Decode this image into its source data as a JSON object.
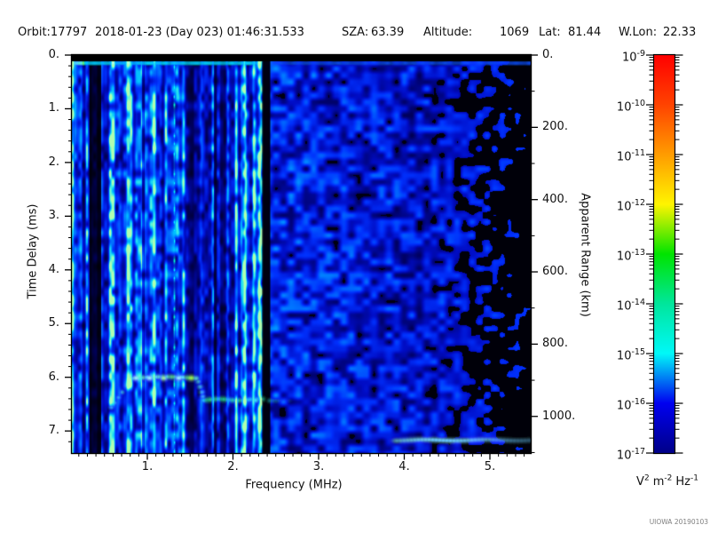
{
  "header": {
    "fields": [
      {
        "name": "orbit",
        "text": "Orbit:17797"
      },
      {
        "name": "datetime",
        "text": "2018-01-23 (Day 023) 01:46:31.533"
      },
      {
        "name": "sza-label",
        "text": "SZA:"
      },
      {
        "name": "sza-value",
        "text": "63.39"
      },
      {
        "name": "altitude-label",
        "text": "Altitude:"
      },
      {
        "name": "altitude-value",
        "text": "1069"
      },
      {
        "name": "lat-label",
        "text": "Lat:"
      },
      {
        "name": "lat-value",
        "text": "81.44"
      },
      {
        "name": "wlon-label",
        "text": "W.Lon:"
      },
      {
        "name": "wlon-value",
        "text": "22.33"
      }
    ]
  },
  "axes": {
    "x_title": "Frequency (MHz)",
    "y_left_title": "Time Delay (ms)",
    "y_right_title": "Apparent Range (km)",
    "x_tick_labels": [
      "1.",
      "2.",
      "3.",
      "4.",
      "5."
    ],
    "y_left_tick_labels": [
      "0.",
      "1.",
      "2.",
      "3.",
      "4.",
      "5.",
      "6.",
      "7."
    ],
    "y_right_tick_labels": [
      "0.",
      "200.",
      "400.",
      "600.",
      "800.",
      "1000."
    ]
  },
  "colorbar": {
    "base": "10",
    "tick_exponents": [
      "-9",
      "-10",
      "-11",
      "-12",
      "-13",
      "-14",
      "-15",
      "-16",
      "-17"
    ],
    "units_parts": [
      [
        "V",
        "2"
      ],
      [
        "m",
        "-2"
      ],
      [
        "Hz",
        "-1"
      ]
    ],
    "gradient": [
      "#ff0000",
      "#ff4300",
      "#ff9c00",
      "#fff400",
      "#00e400",
      "#00e69c",
      "#00f8f8",
      "#0000f0",
      "#000088"
    ]
  },
  "watermark": "UIOWA 20190103",
  "chart_data": {
    "type": "heatmap",
    "subtype": "radar-sounder-ionogram-spectrogram",
    "xlabel": "Frequency (MHz)",
    "ylabel": "Time Delay (ms)",
    "y2label": "Apparent Range (km)",
    "xlim": [
      0.12,
      5.45
    ],
    "ylim_ms": [
      0,
      7.4
    ],
    "y2lim_km": [
      0,
      1100
    ],
    "x_ticks": [
      1,
      2,
      3,
      4,
      5
    ],
    "x_minor_step": 0.1,
    "y_ticks_ms": [
      0,
      1,
      2,
      3,
      4,
      5,
      6,
      7
    ],
    "y_minor_step_ms": 0.2,
    "y2_ticks_km": [
      0,
      200,
      400,
      600,
      800,
      1000
    ],
    "y2_minor_step_km": 100,
    "grid": false,
    "colorbar": {
      "scale": "log10",
      "range": [
        "1e-17",
        "1e-9"
      ],
      "units": "V^2 m^-2 Hz^-1",
      "colormap": "rainbow"
    },
    "features": {
      "top_black_band_ms": [
        0.0,
        0.12
      ],
      "top_bright_line_ms": [
        0.12,
        0.19
      ],
      "echo_trace": {
        "leading_edge_f_ms": [
          [
            0.62,
            6.55
          ],
          [
            0.68,
            6.42
          ],
          [
            0.74,
            6.27
          ],
          [
            0.8,
            6.1
          ]
        ],
        "plateau": {
          "f_MHz": [
            0.82,
            1.58
          ],
          "delay_ms": 6.0
        },
        "cusp_f_ms": [
          [
            1.6,
            6.05
          ],
          [
            1.66,
            6.35
          ]
        ],
        "second_branch": {
          "f_MHz": [
            1.68,
            2.5
          ],
          "delay_ms": 6.42
        },
        "faint_continuation": {
          "f_MHz": [
            2.46,
            2.72
          ],
          "delay_ms": 6.45
        }
      },
      "bright_vertical_line_MHz": 1.31,
      "dark_vertical_bands_MHz": [
        [
          0.32,
          0.46
        ],
        [
          2.36,
          2.43
        ]
      ],
      "bottom_streak": {
        "f_MHz": [
          3.92,
          5.45
        ],
        "delay_ms": 7.16
      },
      "background_regions": [
        {
          "f_MHz": [
            0.12,
            2.36
          ],
          "desc": "bright streaky blue-cyan noise"
        },
        {
          "f_MHz": [
            2.43,
            4.25
          ],
          "desc": "mottled medium blue blobs"
        },
        {
          "f_MHz": [
            4.25,
            5.45
          ],
          "desc": "sparse dim blue blobs on black"
        }
      ]
    },
    "render": {
      "seed": 7,
      "colormap_stops": [
        [
          0,
          [
            0,
            0,
            0
          ]
        ],
        [
          0.16,
          [
            0,
            0,
            92
          ]
        ],
        [
          0.33,
          [
            0,
            12,
            196
          ]
        ],
        [
          0.48,
          [
            0,
            48,
            252
          ]
        ],
        [
          0.62,
          [
            0,
            112,
            255
          ]
        ],
        [
          0.76,
          [
            0,
            192,
            255
          ]
        ],
        [
          0.88,
          [
            64,
            240,
            228
          ]
        ],
        [
          1,
          [
            176,
            255,
            176
          ]
        ]
      ]
    }
  }
}
